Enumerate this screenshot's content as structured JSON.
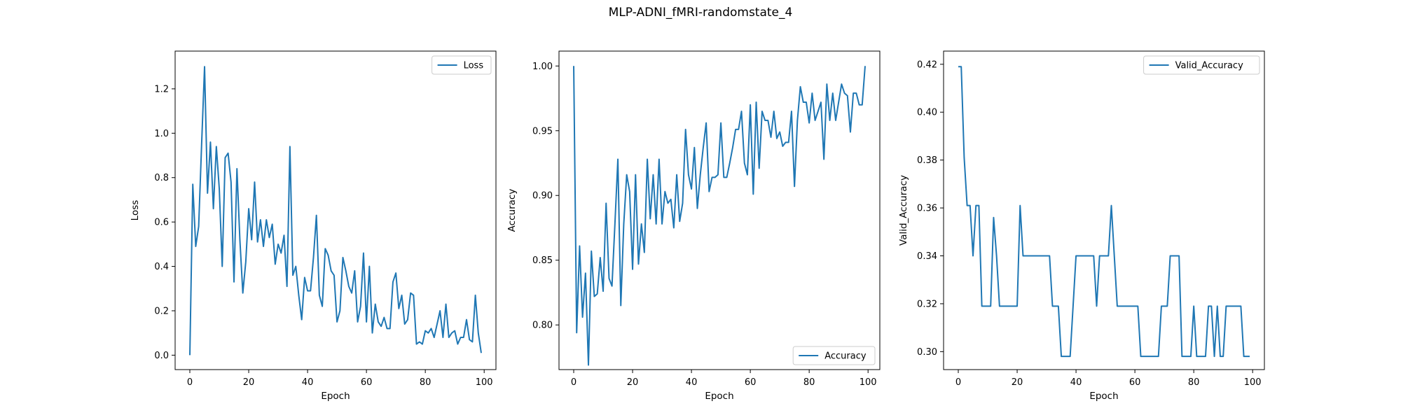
{
  "figure": {
    "title": "MLP-ADNI_fMRI-randomstate_4"
  },
  "chart_data": [
    {
      "type": "line",
      "xlabel": "Epoch",
      "ylabel": "Loss",
      "xlim": [
        -5,
        104
      ],
      "ylim": [
        -0.065,
        1.37
      ],
      "xticks": [
        0,
        20,
        40,
        60,
        80,
        100
      ],
      "yticks": [
        0.0,
        0.2,
        0.4,
        0.6,
        0.8,
        1.0,
        1.2
      ],
      "legend": "top-right",
      "color": "#1f77b4",
      "series": [
        {
          "name": "Loss",
          "x": [
            0,
            1,
            2,
            3,
            4,
            5,
            6,
            7,
            8,
            9,
            10,
            11,
            12,
            13,
            14,
            15,
            16,
            17,
            18,
            19,
            20,
            21,
            22,
            23,
            24,
            25,
            26,
            27,
            28,
            29,
            30,
            31,
            32,
            33,
            34,
            35,
            36,
            37,
            38,
            39,
            40,
            41,
            42,
            43,
            44,
            45,
            46,
            47,
            48,
            49,
            50,
            51,
            52,
            53,
            54,
            55,
            56,
            57,
            58,
            59,
            60,
            61,
            62,
            63,
            64,
            65,
            66,
            67,
            68,
            69,
            70,
            71,
            72,
            73,
            74,
            75,
            76,
            77,
            78,
            79,
            80,
            81,
            82,
            83,
            84,
            85,
            86,
            87,
            88,
            89,
            90,
            91,
            92,
            93,
            94,
            95,
            96,
            97,
            98,
            99
          ],
          "values": [
            0.0,
            0.77,
            0.49,
            0.58,
            0.95,
            1.3,
            0.73,
            0.96,
            0.66,
            0.94,
            0.75,
            0.4,
            0.89,
            0.91,
            0.78,
            0.33,
            0.84,
            0.52,
            0.28,
            0.42,
            0.66,
            0.52,
            0.78,
            0.51,
            0.61,
            0.49,
            0.61,
            0.53,
            0.59,
            0.41,
            0.5,
            0.46,
            0.54,
            0.31,
            0.94,
            0.36,
            0.4,
            0.27,
            0.16,
            0.35,
            0.29,
            0.29,
            0.44,
            0.63,
            0.27,
            0.22,
            0.48,
            0.45,
            0.38,
            0.36,
            0.15,
            0.2,
            0.44,
            0.38,
            0.31,
            0.28,
            0.38,
            0.15,
            0.22,
            0.46,
            0.15,
            0.4,
            0.1,
            0.23,
            0.15,
            0.13,
            0.17,
            0.12,
            0.12,
            0.33,
            0.37,
            0.21,
            0.27,
            0.14,
            0.16,
            0.28,
            0.27,
            0.05,
            0.06,
            0.05,
            0.11,
            0.1,
            0.12,
            0.08,
            0.14,
            0.2,
            0.08,
            0.23,
            0.08,
            0.1,
            0.11,
            0.05,
            0.08,
            0.08,
            0.16,
            0.07,
            0.06,
            0.27,
            0.1,
            0.01
          ]
        }
      ]
    },
    {
      "type": "line",
      "xlabel": "Epoch",
      "ylabel": "Accuracy",
      "xlim": [
        -5,
        104
      ],
      "ylim": [
        0.7655,
        1.0115
      ],
      "xticks": [
        0,
        20,
        40,
        60,
        80,
        100
      ],
      "yticks": [
        0.8,
        0.85,
        0.9,
        0.95,
        1.0
      ],
      "legend": "bottom-right",
      "color": "#1f77b4",
      "series": [
        {
          "name": "Accuracy",
          "x": [
            0,
            1,
            2,
            3,
            4,
            5,
            6,
            7,
            8,
            9,
            10,
            11,
            12,
            13,
            14,
            15,
            16,
            17,
            18,
            19,
            20,
            21,
            22,
            23,
            24,
            25,
            26,
            27,
            28,
            29,
            30,
            31,
            32,
            33,
            34,
            35,
            36,
            37,
            38,
            39,
            40,
            41,
            42,
            43,
            44,
            45,
            46,
            47,
            48,
            49,
            50,
            51,
            52,
            53,
            54,
            55,
            56,
            57,
            58,
            59,
            60,
            61,
            62,
            63,
            64,
            65,
            66,
            67,
            68,
            69,
            70,
            71,
            72,
            73,
            74,
            75,
            76,
            77,
            78,
            79,
            80,
            81,
            82,
            83,
            84,
            85,
            86,
            87,
            88,
            89,
            90,
            91,
            92,
            93,
            94,
            95,
            96,
            97,
            98,
            99
          ],
          "values": [
            1.0,
            0.794,
            0.861,
            0.806,
            0.84,
            0.769,
            0.857,
            0.822,
            0.824,
            0.852,
            0.826,
            0.894,
            0.836,
            0.83,
            0.878,
            0.928,
            0.815,
            0.878,
            0.916,
            0.903,
            0.843,
            0.916,
            0.847,
            0.878,
            0.856,
            0.928,
            0.882,
            0.916,
            0.878,
            0.928,
            0.878,
            0.903,
            0.894,
            0.897,
            0.875,
            0.916,
            0.88,
            0.894,
            0.951,
            0.916,
            0.905,
            0.937,
            0.89,
            0.916,
            0.937,
            0.956,
            0.903,
            0.914,
            0.914,
            0.916,
            0.956,
            0.914,
            0.914,
            0.925,
            0.937,
            0.951,
            0.951,
            0.965,
            0.925,
            0.916,
            0.97,
            0.901,
            0.972,
            0.921,
            0.965,
            0.958,
            0.958,
            0.945,
            0.965,
            0.944,
            0.949,
            0.938,
            0.941,
            0.941,
            0.965,
            0.907,
            0.958,
            0.984,
            0.972,
            0.972,
            0.956,
            0.979,
            0.958,
            0.965,
            0.972,
            0.928,
            0.986,
            0.958,
            0.979,
            0.958,
            0.972,
            0.986,
            0.979,
            0.977,
            0.949,
            0.979,
            0.979,
            0.97,
            0.97,
            1.0
          ]
        }
      ]
    },
    {
      "type": "line",
      "xlabel": "Epoch",
      "ylabel": "Valid_Accuracy",
      "xlim": [
        -5,
        104
      ],
      "ylim": [
        0.2925,
        0.4255
      ],
      "xticks": [
        0,
        20,
        40,
        60,
        80,
        100
      ],
      "yticks": [
        0.3,
        0.32,
        0.34,
        0.36,
        0.38,
        0.4,
        0.42
      ],
      "legend": "top-right",
      "color": "#1f77b4",
      "series": [
        {
          "name": "Valid_Accuracy",
          "x": [
            0,
            1,
            2,
            3,
            4,
            5,
            6,
            7,
            8,
            9,
            10,
            11,
            12,
            13,
            14,
            15,
            16,
            17,
            18,
            19,
            20,
            21,
            22,
            23,
            24,
            25,
            26,
            27,
            28,
            29,
            30,
            31,
            32,
            33,
            34,
            35,
            36,
            37,
            38,
            39,
            40,
            41,
            42,
            43,
            44,
            45,
            46,
            47,
            48,
            49,
            50,
            51,
            52,
            53,
            54,
            55,
            56,
            57,
            58,
            59,
            60,
            61,
            62,
            63,
            64,
            65,
            66,
            67,
            68,
            69,
            70,
            71,
            72,
            73,
            74,
            75,
            76,
            77,
            78,
            79,
            80,
            81,
            82,
            83,
            84,
            85,
            86,
            87,
            88,
            89,
            90,
            91,
            92,
            93,
            94,
            95,
            96,
            97,
            98,
            99
          ],
          "values": [
            0.419,
            0.419,
            0.381,
            0.361,
            0.361,
            0.34,
            0.361,
            0.361,
            0.319,
            0.319,
            0.319,
            0.319,
            0.356,
            0.34,
            0.319,
            0.319,
            0.319,
            0.319,
            0.319,
            0.319,
            0.319,
            0.361,
            0.34,
            0.34,
            0.34,
            0.34,
            0.34,
            0.34,
            0.34,
            0.34,
            0.34,
            0.34,
            0.319,
            0.319,
            0.319,
            0.298,
            0.298,
            0.298,
            0.298,
            0.319,
            0.34,
            0.34,
            0.34,
            0.34,
            0.34,
            0.34,
            0.34,
            0.319,
            0.34,
            0.34,
            0.34,
            0.34,
            0.361,
            0.34,
            0.319,
            0.319,
            0.319,
            0.319,
            0.319,
            0.319,
            0.319,
            0.319,
            0.298,
            0.298,
            0.298,
            0.298,
            0.298,
            0.298,
            0.298,
            0.319,
            0.319,
            0.319,
            0.34,
            0.34,
            0.34,
            0.34,
            0.298,
            0.298,
            0.298,
            0.298,
            0.319,
            0.298,
            0.298,
            0.298,
            0.298,
            0.319,
            0.319,
            0.298,
            0.319,
            0.298,
            0.298,
            0.319,
            0.319,
            0.319,
            0.319,
            0.319,
            0.319,
            0.298,
            0.298,
            0.298
          ]
        }
      ]
    }
  ]
}
